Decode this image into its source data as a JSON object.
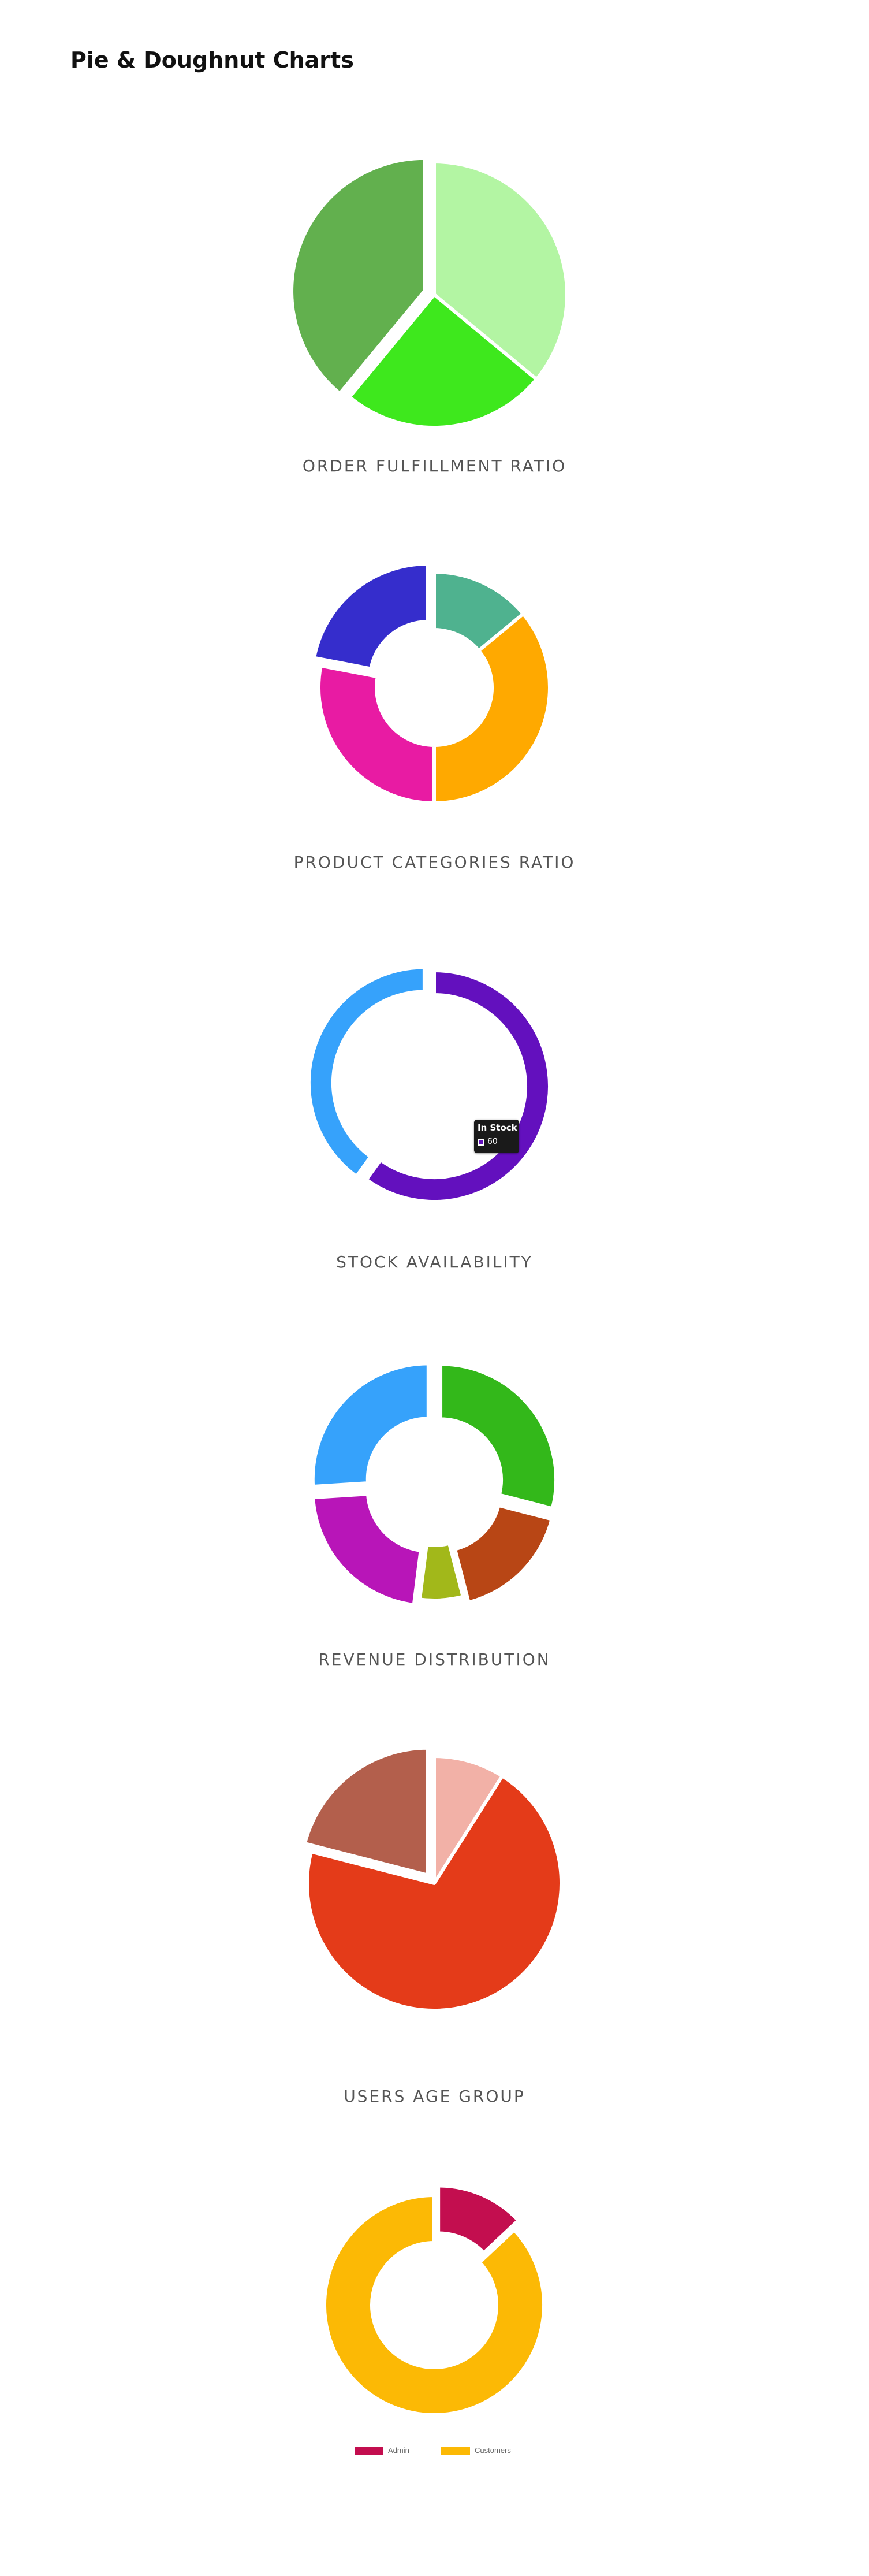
{
  "page": {
    "title": "Pie & Doughnut Charts"
  },
  "chart_data": [
    {
      "type": "pie",
      "caption": "ORDER FULFILLMENT RATIO",
      "slices": [
        {
          "value": 36,
          "color": "#b3f5a3",
          "offset": false
        },
        {
          "value": 25,
          "color": "#3ee81d",
          "offset": false
        },
        {
          "value": 39,
          "color": "#62b04e",
          "offset": true
        }
      ]
    },
    {
      "type": "doughnut",
      "caption": "PRODUCT CATEGORIES RATIO",
      "slices": [
        {
          "value": 14,
          "color": "#4fb28f",
          "offset": false
        },
        {
          "value": 36,
          "color": "#ffa900",
          "offset": false
        },
        {
          "value": 28,
          "color": "#e81ba3",
          "offset": false
        },
        {
          "value": 22,
          "color": "#352dcc",
          "offset": true
        }
      ]
    },
    {
      "type": "doughnut",
      "caption": "STOCK AVAILABILITY",
      "slices": [
        {
          "label": "In Stock",
          "value": 60,
          "color": "#6310be",
          "offset": false
        },
        {
          "value": 40,
          "color": "#36a2fb",
          "offset": true
        }
      ],
      "tooltip": {
        "title": "In Stock",
        "value": "60"
      }
    },
    {
      "type": "doughnut",
      "caption": "REVENUE DISTRIBUTION",
      "slices": [
        {
          "value": 29,
          "color": "#33b81a",
          "offset": true
        },
        {
          "value": 17,
          "color": "#b84615",
          "offset": true
        },
        {
          "value": 6,
          "color": "#a2b81a",
          "offset": false
        },
        {
          "value": 22,
          "color": "#b815b8",
          "offset": true
        },
        {
          "value": 26,
          "color": "#36a2fb",
          "offset": true
        }
      ]
    },
    {
      "type": "pie",
      "caption": "USERS AGE GROUP",
      "slices": [
        {
          "value": 9,
          "color": "#f2b1a7",
          "offset": false
        },
        {
          "value": 70,
          "color": "#e43b19",
          "offset": false
        },
        {
          "value": 21,
          "color": "#b35f4c",
          "offset": true
        }
      ]
    },
    {
      "type": "doughnut",
      "caption": "",
      "slices": [
        {
          "label": "Admin",
          "value": 13,
          "color": "#c30e4f",
          "offset": true
        },
        {
          "label": "Customers",
          "value": 87,
          "color": "#fcb905",
          "offset": false
        }
      ],
      "legend": [
        "Admin",
        "Customers"
      ]
    }
  ]
}
